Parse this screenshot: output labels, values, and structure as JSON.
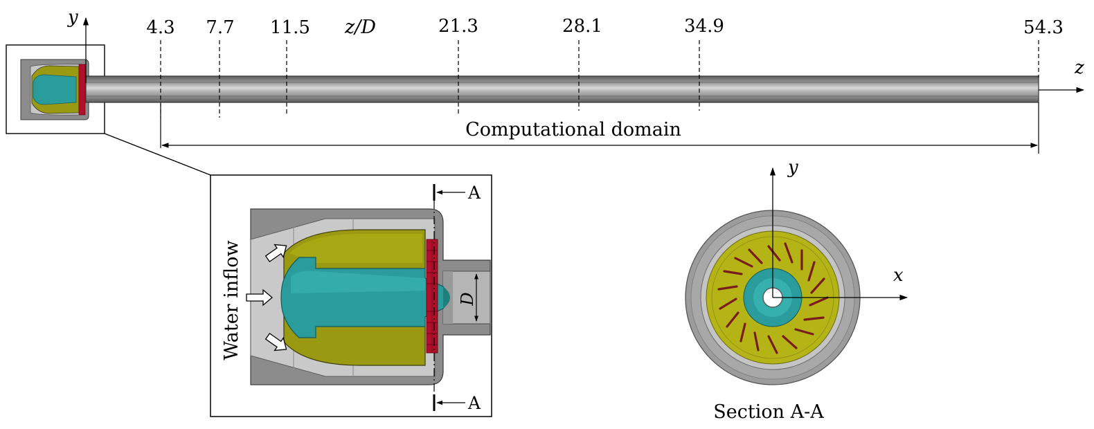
{
  "axes": {
    "y_top": "y",
    "z_right": "z",
    "zD_label": "z/D",
    "section_x": "x",
    "section_y": "y"
  },
  "stations": {
    "title": "z/D",
    "values": [
      "4.3",
      "7.7",
      "11.5",
      "21.3",
      "28.1",
      "34.9",
      "54.3"
    ]
  },
  "labels": {
    "computational_domain": "Computational domain",
    "water_inflow": "Water inflow",
    "diameter": "D",
    "section_marker_top": "A",
    "section_marker_bottom": "A",
    "section_caption": "Section A-A"
  },
  "colors": {
    "body_gray": "#8c8c8c",
    "light_gray": "#c8c8c8",
    "olive": "#9a9a12",
    "olive_light": "#b4b417",
    "cyan": "#2a9c9c",
    "cyan_light": "#3cb8b8",
    "red_swirler": "#b0102a",
    "vane_red": "#7a1c1c"
  },
  "icons": [
    "inflow-arrow-icon",
    "section-arrow-icon"
  ]
}
